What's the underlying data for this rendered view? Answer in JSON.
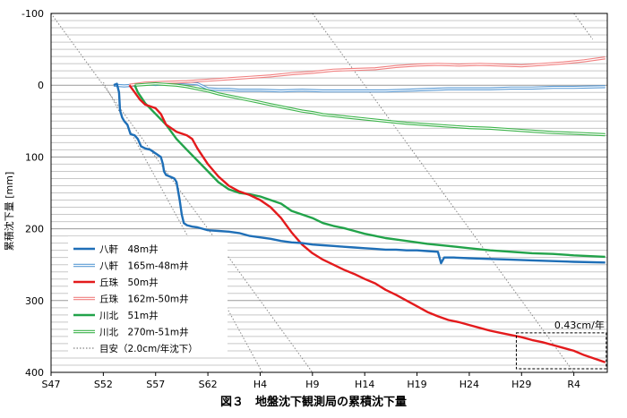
{
  "chart_data": {
    "type": "line",
    "title": "図３　地盤沈下観測局の累積沈下量",
    "ylabel": "累積沈下量 [mm]",
    "xlabel": "",
    "ylim": [
      -100,
      400
    ],
    "y_inverted": true,
    "y_ticks": [
      -100,
      0,
      100,
      200,
      300,
      400
    ],
    "x_ticks": [
      "S47",
      "S52",
      "S57",
      "S62",
      "H4",
      "H9",
      "H14",
      "H19",
      "H24",
      "H29",
      "R4"
    ],
    "x_tick_years": [
      1972,
      1977,
      1982,
      1987,
      1992,
      1997,
      2002,
      2007,
      2012,
      2017,
      2022
    ],
    "xlim_years": [
      1972,
      2025.2
    ],
    "grid": "horizontal minor + major",
    "legend_position": "bottom-left",
    "series": [
      {
        "name": "八軒　48m井",
        "color": "#1f6fb7",
        "style": "solid-thick",
        "points": [
          [
            1978.0,
            0
          ],
          [
            1978.3,
            -2
          ],
          [
            1978.5,
            10
          ],
          [
            1978.6,
            35
          ],
          [
            1978.8,
            45
          ],
          [
            1979.0,
            50
          ],
          [
            1979.3,
            55
          ],
          [
            1979.6,
            68
          ],
          [
            1980.0,
            70
          ],
          [
            1980.3,
            75
          ],
          [
            1980.6,
            85
          ],
          [
            1981.0,
            88
          ],
          [
            1981.5,
            90
          ],
          [
            1982.0,
            95
          ],
          [
            1982.5,
            100
          ],
          [
            1982.7,
            110
          ],
          [
            1982.8,
            120
          ],
          [
            1983.0,
            125
          ],
          [
            1983.5,
            128
          ],
          [
            1983.8,
            130
          ],
          [
            1984.0,
            135
          ],
          [
            1984.3,
            160
          ],
          [
            1984.5,
            180
          ],
          [
            1984.7,
            192
          ],
          [
            1985.0,
            195
          ],
          [
            1985.5,
            197
          ],
          [
            1986.0,
            198
          ],
          [
            1986.5,
            200
          ],
          [
            1987.0,
            202
          ],
          [
            1988.0,
            203
          ],
          [
            1989.0,
            204
          ],
          [
            1990.0,
            206
          ],
          [
            1991.0,
            210
          ],
          [
            1992.0,
            212
          ],
          [
            1993.0,
            214
          ],
          [
            1994.0,
            217
          ],
          [
            1995.0,
            219
          ],
          [
            1996.0,
            220
          ],
          [
            1997.0,
            222
          ],
          [
            1998.0,
            223
          ],
          [
            1999.0,
            224
          ],
          [
            2000.0,
            225
          ],
          [
            2001.0,
            226
          ],
          [
            2002.0,
            227
          ],
          [
            2003.0,
            228
          ],
          [
            2004.0,
            229
          ],
          [
            2005.0,
            229
          ],
          [
            2006.0,
            230
          ],
          [
            2007.0,
            230
          ],
          [
            2008.0,
            231
          ],
          [
            2009.0,
            232
          ],
          [
            2009.3,
            248
          ],
          [
            2009.6,
            240
          ],
          [
            2010.5,
            240
          ],
          [
            2012.0,
            241
          ],
          [
            2014.0,
            242
          ],
          [
            2016.0,
            243
          ],
          [
            2018.0,
            244
          ],
          [
            2020.0,
            245
          ],
          [
            2022.0,
            246
          ],
          [
            2025.0,
            247
          ]
        ]
      },
      {
        "name": "八軒　165m-48m井",
        "color": "#5b9bd5",
        "style": "double",
        "points": [
          [
            1978.0,
            0
          ],
          [
            1979.0,
            1
          ],
          [
            1980.0,
            0
          ],
          [
            1981.0,
            -2
          ],
          [
            1982.0,
            -1
          ],
          [
            1983.0,
            -2
          ],
          [
            1984.0,
            -4
          ],
          [
            1985.0,
            -3
          ],
          [
            1986.0,
            -2
          ],
          [
            1987.0,
            5
          ],
          [
            1988.0,
            6
          ],
          [
            1989.0,
            6
          ],
          [
            1990.0,
            7
          ],
          [
            1992.0,
            7
          ],
          [
            1994.0,
            8
          ],
          [
            1996.0,
            7
          ],
          [
            1998.0,
            8
          ],
          [
            2000.0,
            8
          ],
          [
            2002.0,
            8
          ],
          [
            2004.0,
            8
          ],
          [
            2006.0,
            7
          ],
          [
            2008.0,
            6
          ],
          [
            2010.0,
            5
          ],
          [
            2012.0,
            5
          ],
          [
            2014.0,
            5
          ],
          [
            2016.0,
            4
          ],
          [
            2018.0,
            4
          ],
          [
            2020.0,
            3
          ],
          [
            2022.0,
            3
          ],
          [
            2025.0,
            2
          ]
        ]
      },
      {
        "name": "丘珠　50m井",
        "color": "#e31a1c",
        "style": "solid-thick",
        "points": [
          [
            1979.5,
            0
          ],
          [
            1980.0,
            10
          ],
          [
            1980.5,
            20
          ],
          [
            1981.0,
            27
          ],
          [
            1982.0,
            32
          ],
          [
            1982.5,
            40
          ],
          [
            1983.0,
            55
          ],
          [
            1984.0,
            65
          ],
          [
            1985.0,
            70
          ],
          [
            1985.5,
            75
          ],
          [
            1986.0,
            88
          ],
          [
            1987.0,
            110
          ],
          [
            1988.0,
            127
          ],
          [
            1989.0,
            140
          ],
          [
            1990.0,
            148
          ],
          [
            1991.0,
            153
          ],
          [
            1992.0,
            160
          ],
          [
            1993.0,
            170
          ],
          [
            1994.0,
            185
          ],
          [
            1995.0,
            205
          ],
          [
            1996.0,
            222
          ],
          [
            1997.0,
            234
          ],
          [
            1998.0,
            243
          ],
          [
            1999.0,
            250
          ],
          [
            2000.0,
            257
          ],
          [
            2001.0,
            263
          ],
          [
            2002.0,
            270
          ],
          [
            2003.0,
            276
          ],
          [
            2004.0,
            285
          ],
          [
            2005.0,
            292
          ],
          [
            2006.0,
            300
          ],
          [
            2007.0,
            308
          ],
          [
            2008.0,
            316
          ],
          [
            2009.0,
            322
          ],
          [
            2010.0,
            327
          ],
          [
            2011.0,
            330
          ],
          [
            2012.0,
            334
          ],
          [
            2013.0,
            338
          ],
          [
            2014.0,
            342
          ],
          [
            2015.0,
            345
          ],
          [
            2016.0,
            348
          ],
          [
            2017.0,
            351
          ],
          [
            2018.0,
            355
          ],
          [
            2019.0,
            358
          ],
          [
            2020.0,
            362
          ],
          [
            2021.0,
            366
          ],
          [
            2022.0,
            370
          ],
          [
            2023.0,
            376
          ],
          [
            2024.0,
            381
          ],
          [
            2025.0,
            386
          ]
        ]
      },
      {
        "name": "丘珠　162m-50m井",
        "color": "#f08080",
        "style": "double",
        "points": [
          [
            1979.5,
            0
          ],
          [
            1981.0,
            -3
          ],
          [
            1983.0,
            -4
          ],
          [
            1985.0,
            -5
          ],
          [
            1987.0,
            -7
          ],
          [
            1989.0,
            -9
          ],
          [
            1991.0,
            -11
          ],
          [
            1993.0,
            -13
          ],
          [
            1995.0,
            -16
          ],
          [
            1997.0,
            -18
          ],
          [
            1999.0,
            -21
          ],
          [
            2001.0,
            -22
          ],
          [
            2003.0,
            -23
          ],
          [
            2005.0,
            -26
          ],
          [
            2007.0,
            -28
          ],
          [
            2009.0,
            -29
          ],
          [
            2011.0,
            -28
          ],
          [
            2013.0,
            -29
          ],
          [
            2015.0,
            -28
          ],
          [
            2017.0,
            -27
          ],
          [
            2019.0,
            -29
          ],
          [
            2021.0,
            -31
          ],
          [
            2023.0,
            -34
          ],
          [
            2025.0,
            -38
          ]
        ]
      },
      {
        "name": "川北　51m井",
        "color": "#22a34a",
        "style": "solid-thick",
        "points": [
          [
            1980.0,
            0
          ],
          [
            1980.3,
            10
          ],
          [
            1981.0,
            25
          ],
          [
            1982.0,
            40
          ],
          [
            1983.0,
            55
          ],
          [
            1984.0,
            75
          ],
          [
            1985.0,
            90
          ],
          [
            1986.0,
            105
          ],
          [
            1987.0,
            120
          ],
          [
            1988.0,
            135
          ],
          [
            1989.0,
            145
          ],
          [
            1990.0,
            150
          ],
          [
            1991.0,
            152
          ],
          [
            1992.0,
            155
          ],
          [
            1993.0,
            160
          ],
          [
            1994.0,
            165
          ],
          [
            1995.0,
            175
          ],
          [
            1996.0,
            180
          ],
          [
            1997.0,
            185
          ],
          [
            1998.0,
            192
          ],
          [
            1999.0,
            196
          ],
          [
            2000.0,
            199
          ],
          [
            2001.0,
            203
          ],
          [
            2002.0,
            207
          ],
          [
            2003.0,
            210
          ],
          [
            2004.0,
            213
          ],
          [
            2005.0,
            215
          ],
          [
            2006.0,
            217
          ],
          [
            2008.0,
            221
          ],
          [
            2010.0,
            224
          ],
          [
            2012.0,
            227
          ],
          [
            2014.0,
            230
          ],
          [
            2016.0,
            232
          ],
          [
            2018.0,
            234
          ],
          [
            2020.0,
            235
          ],
          [
            2022.0,
            237
          ],
          [
            2025.0,
            239
          ]
        ]
      },
      {
        "name": "川北　270m-51m井",
        "color": "#3cb34a",
        "style": "double",
        "points": [
          [
            1980.0,
            0
          ],
          [
            1981.0,
            -1
          ],
          [
            1982.0,
            -2
          ],
          [
            1983.0,
            -1
          ],
          [
            1984.0,
            0
          ],
          [
            1985.0,
            2
          ],
          [
            1986.0,
            5
          ],
          [
            1987.0,
            8
          ],
          [
            1988.0,
            12
          ],
          [
            1989.0,
            15
          ],
          [
            1990.0,
            18
          ],
          [
            1991.0,
            21
          ],
          [
            1992.0,
            24
          ],
          [
            1993.0,
            27
          ],
          [
            1994.0,
            30
          ],
          [
            1995.0,
            33
          ],
          [
            1996.0,
            36
          ],
          [
            1997.0,
            38
          ],
          [
            1998.0,
            41
          ],
          [
            2000.0,
            44
          ],
          [
            2002.0,
            47
          ],
          [
            2004.0,
            50
          ],
          [
            2006.0,
            53
          ],
          [
            2008.0,
            55
          ],
          [
            2010.0,
            57
          ],
          [
            2012.0,
            59
          ],
          [
            2014.0,
            60
          ],
          [
            2016.0,
            62
          ],
          [
            2018.0,
            64
          ],
          [
            2020.0,
            66
          ],
          [
            2022.0,
            67
          ],
          [
            2025.0,
            69
          ]
        ]
      },
      {
        "name": "目安（2.0cm/年沈下）",
        "color": "#888888",
        "style": "dotted",
        "points": [
          [
            1972.0,
            -100
          ],
          [
            1997.0,
            400
          ]
        ]
      }
    ],
    "guide_lines_extra": [
      {
        "points": [
          [
            1977.0,
            -4
          ],
          [
            1992.2,
            400
          ]
        ]
      },
      {
        "points": [
          [
            1997.0,
            -100
          ],
          [
            2022.0,
            400
          ]
        ]
      },
      {
        "points": [
          [
            2022.0,
            -100
          ],
          [
            2023.8,
            -64
          ]
        ]
      }
    ],
    "annotations": [
      {
        "text": "0.43cm/年",
        "box_years": [
          2016.5,
          2025.1
        ],
        "box_values": [
          345,
          395
        ]
      }
    ]
  }
}
